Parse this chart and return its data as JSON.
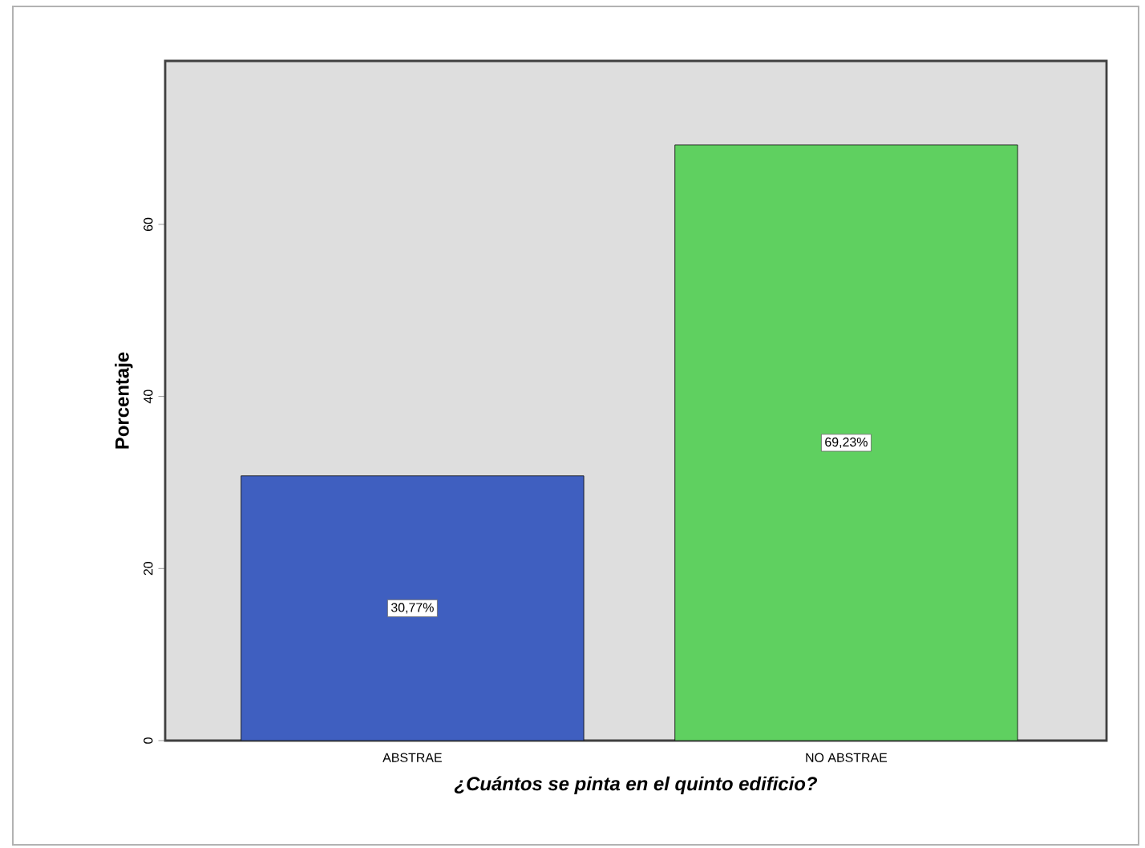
{
  "chart_data": {
    "type": "bar",
    "xlabel": "¿Cuántos se pinta en el quinto edificio?",
    "ylabel": "Porcentaje",
    "categories": [
      "ABSTRAE",
      "NO ABSTRAE"
    ],
    "values": [
      30.77,
      69.23
    ],
    "colors": [
      "#3f5fc0",
      "#5fd060"
    ],
    "value_labels": [
      "30,77%",
      "69,23%"
    ],
    "ylim": [
      0,
      79
    ],
    "yticks": [
      0,
      20,
      40,
      60
    ],
    "grid": false
  }
}
